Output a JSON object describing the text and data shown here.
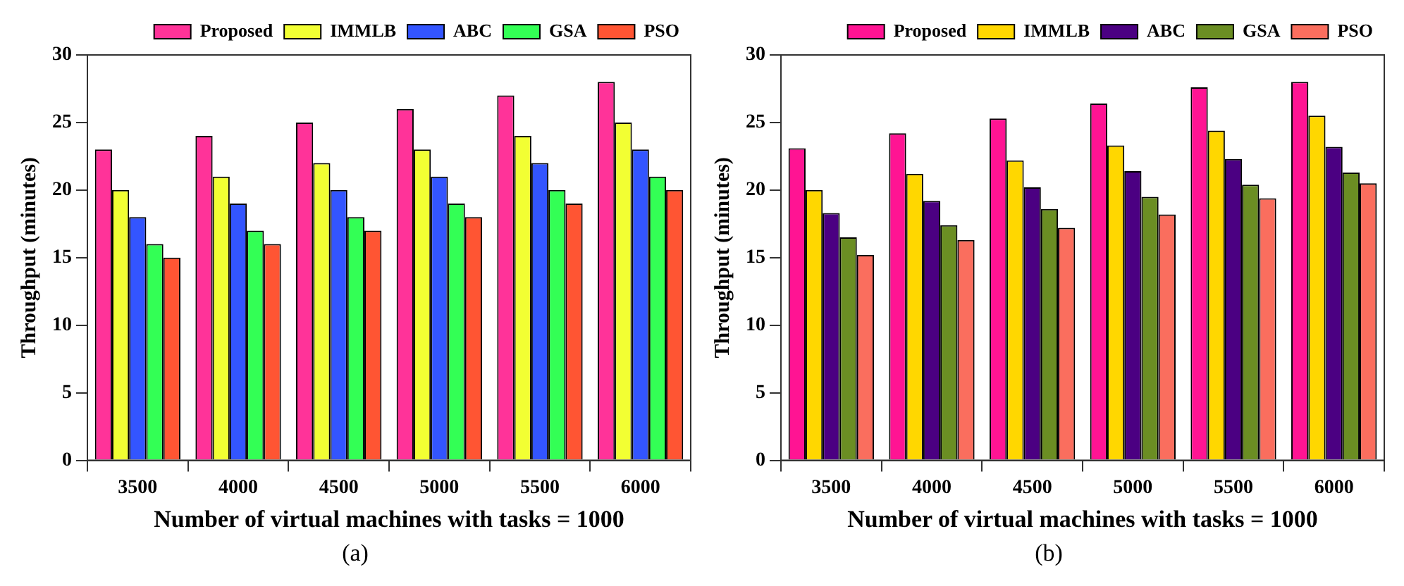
{
  "chart_data": [
    {
      "type": "bar",
      "xlabel": "Number of virtual machines with tasks = 1000",
      "ylabel": "Throughput (minutes)",
      "categories": [
        "3500",
        "4000",
        "4500",
        "5000",
        "5500",
        "6000"
      ],
      "series": [
        {
          "name": "Proposed",
          "color": "#ff3399",
          "values": [
            23,
            24,
            25,
            26,
            27,
            28
          ]
        },
        {
          "name": "IMMLB",
          "color": "#f2ff33",
          "values": [
            20,
            21,
            22,
            23,
            24,
            25
          ]
        },
        {
          "name": "ABC",
          "color": "#3355ff",
          "values": [
            18,
            19,
            20,
            21,
            22,
            23
          ]
        },
        {
          "name": "GSA",
          "color": "#33ff55",
          "values": [
            16,
            17,
            18,
            19,
            20,
            21
          ]
        },
        {
          "name": "PSO",
          "color": "#ff5533",
          "values": [
            15,
            16,
            17,
            18,
            19,
            20
          ]
        }
      ],
      "ylim": [
        0,
        30
      ],
      "yticks": [
        0,
        5,
        10,
        15,
        20,
        25,
        30
      ],
      "grid": false,
      "legend": "top",
      "annotations": [
        "(a)"
      ]
    },
    {
      "type": "bar",
      "xlabel": "Number of virtual machines with tasks = 1000",
      "ylabel": "Throughput (minutes)",
      "categories": [
        "3500",
        "4000",
        "4500",
        "5000",
        "5500",
        "6000"
      ],
      "series": [
        {
          "name": "Proposed",
          "color": "#ff1493",
          "values": [
            23.1,
            24.2,
            25.3,
            26.4,
            27.6,
            28
          ]
        },
        {
          "name": "IMMLB",
          "color": "#ffd700",
          "values": [
            20,
            21.2,
            22.2,
            23.3,
            24.4,
            25.5
          ]
        },
        {
          "name": "ABC",
          "color": "#4b0082",
          "values": [
            18.3,
            19.2,
            20.2,
            21.4,
            22.3,
            23.2
          ]
        },
        {
          "name": "GSA",
          "color": "#6b8e23",
          "values": [
            16.5,
            17.4,
            18.6,
            19.5,
            20.4,
            21.3
          ]
        },
        {
          "name": "PSO",
          "color": "#fa6e5e",
          "values": [
            15.2,
            16.3,
            17.2,
            18.2,
            19.4,
            20.5
          ]
        }
      ],
      "ylim": [
        0,
        30
      ],
      "yticks": [
        0,
        5,
        10,
        15,
        20,
        25,
        30
      ],
      "grid": false,
      "legend": "top",
      "annotations": [
        "(b)"
      ]
    }
  ]
}
